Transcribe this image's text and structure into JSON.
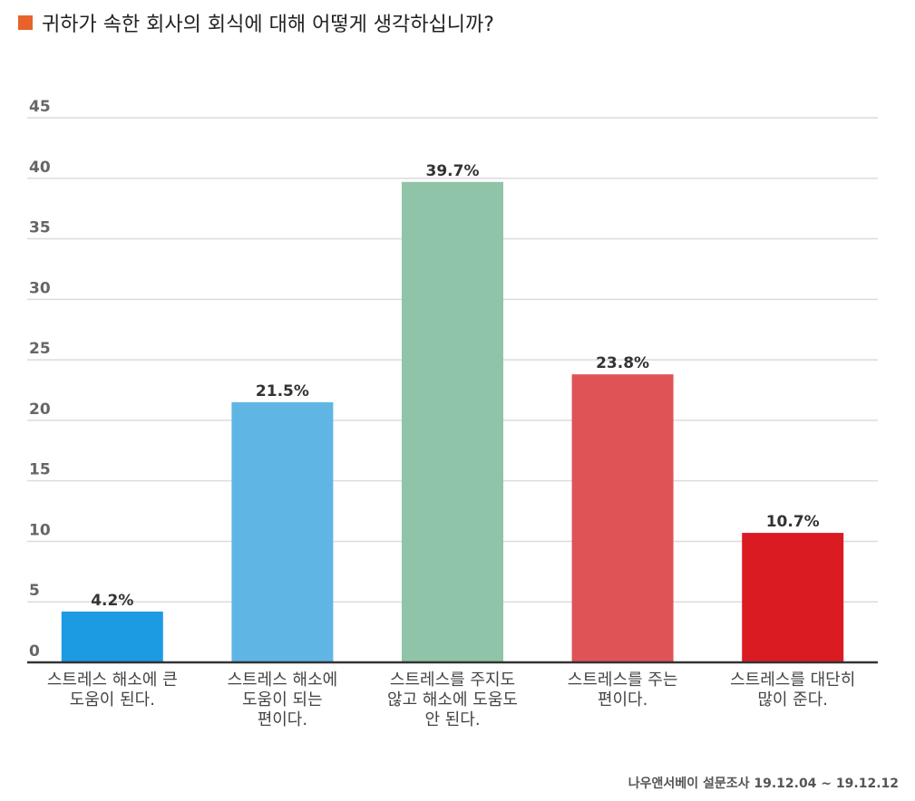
{
  "colors": {
    "title_marker": "#e8622b",
    "grid": "#dcdcdc",
    "axis": "#333333"
  },
  "chart_data": {
    "type": "bar",
    "title": "귀하가 속한 회사의 회식에 대해 어떻게 생각하십니까?",
    "categories": [
      [
        "스트레스 해소에 큰",
        "도움이 된다."
      ],
      [
        "스트레스 해소에",
        "도움이 되는",
        "편이다."
      ],
      [
        "스트레스를 주지도",
        "않고 해소에 도움도",
        "안 된다."
      ],
      [
        "스트레스를 주는",
        "편이다."
      ],
      [
        "스트레스를 대단히",
        "많이 준다."
      ]
    ],
    "values": [
      4.2,
      21.5,
      39.7,
      23.8,
      10.7
    ],
    "data_labels": [
      "4.2%",
      "21.5%",
      "39.7%",
      "23.8%",
      "10.7%"
    ],
    "bar_colors": [
      "#1c9be3",
      "#5fb6e5",
      "#8fc4a8",
      "#df5356",
      "#da1b22"
    ],
    "ylim": [
      0,
      45
    ],
    "yticks": [
      0,
      5,
      10,
      15,
      20,
      25,
      30,
      35,
      40,
      45
    ],
    "grid": true,
    "source": "나우앤서베이 설문조사 19.12.04 ~ 19.12.12"
  }
}
